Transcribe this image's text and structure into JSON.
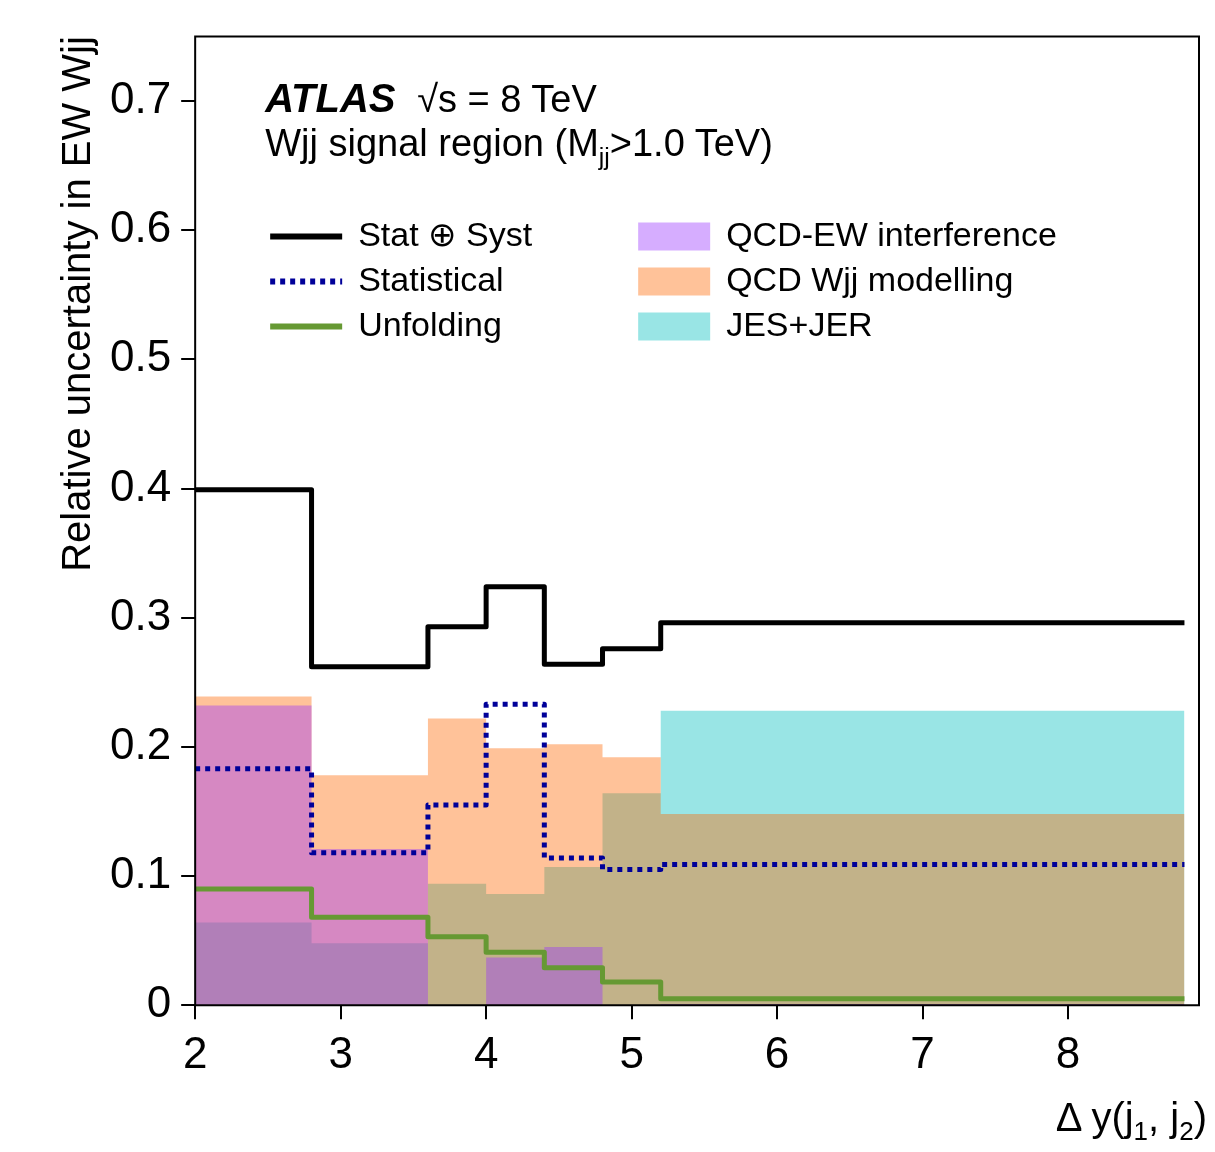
{
  "chart_data": {
    "type": "step",
    "xlabel": "Δ y(j$_{1}$, j$_{2}$)",
    "ylabel": "Relative uncertainty in EW Wjj",
    "annotations": [
      "ATLAS",
      "√s = 8 TeV",
      "Wjj signal region (M$_{jj}$>1.0 TeV)"
    ],
    "x": [
      2,
      2.8,
      3.6,
      4.0,
      4.4,
      4.8,
      5.2,
      8.8
    ],
    "series": [
      {
        "name": "JES+JER",
        "type": "area",
        "color": "#00bfbf",
        "values": [
          0.064,
          0.048,
          0.094,
          0.086,
          0.107,
          0.164,
          0.228,
          0.228
        ]
      },
      {
        "name": "QCD Wjj modelling",
        "type": "area",
        "color": "#ff6600",
        "values": [
          0.239,
          0.178,
          0.222,
          0.199,
          0.202,
          0.192,
          0.148,
          0.148
        ]
      },
      {
        "name": "QCD-EW interference",
        "type": "area",
        "color": "#9933ff",
        "values": [
          0.232,
          0.121,
          0,
          0.037,
          0.045,
          0,
          0.001,
          0.001
        ]
      },
      {
        "name": "Unfolding",
        "type": "step",
        "color": "#669933",
        "values": [
          0.09,
          0.068,
          0.053,
          0.041,
          0.029,
          0.018,
          0.005,
          0.005
        ]
      },
      {
        "name": "Statistical",
        "type": "step",
        "color": "#000099",
        "line_style": "dotted",
        "values": [
          0.183,
          0.118,
          0.155,
          0.233,
          0.114,
          0.105,
          0.109,
          0.109
        ]
      },
      {
        "name": "Stat ⊕ Syst",
        "type": "step",
        "color": "#000000",
        "values": [
          0.399,
          0.262,
          0.293,
          0.324,
          0.264,
          0.276,
          0.296,
          0.296
        ]
      }
    ],
    "xlim": [
      2,
      8.9
    ],
    "xticks": [
      2,
      3,
      4,
      5,
      6,
      7,
      8
    ],
    "ylim": [
      0,
      0.75
    ],
    "yticks": [
      0,
      0.1,
      0.2,
      0.3,
      0.4,
      0.5,
      0.6,
      0.7
    ],
    "grid": false,
    "legend": "top",
    "marker": "none"
  }
}
